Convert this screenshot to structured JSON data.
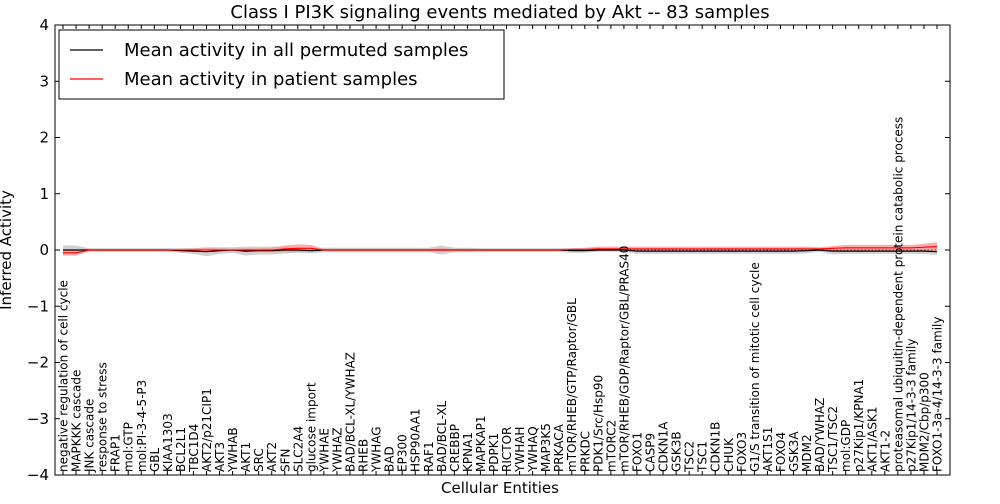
{
  "chart_data": {
    "type": "line",
    "title": "Class I PI3K signaling events mediated by Akt -- 83 samples",
    "xlabel": "Cellular Entities",
    "ylabel": "Inferred Activity",
    "ylim": [
      -4,
      4
    ],
    "yticks": [
      4,
      3,
      2,
      1,
      0,
      -1,
      -2,
      -3,
      -4
    ],
    "ytick_labels": [
      "4",
      "3",
      "2",
      "1",
      "0",
      "−1",
      "−2",
      "−3",
      "−4"
    ],
    "grid": false,
    "legend_position": "top-left",
    "colors": {
      "permuted": "#000000",
      "patient": "#ff0000",
      "patient_band": "#ff9090",
      "permuted_band": "#c8c8c8"
    },
    "categories": [
      "negative regulation of cell cycle",
      "MAPKKK cascade",
      "JNK cascade",
      "response to stress",
      "FRAP1",
      "mol:GTP",
      "mol:PI-3-4-5-P3",
      "GBL",
      "KIAA1303",
      "BCL2L1",
      "TBC1D4",
      "AKT2/p21CIP1",
      "AKT3",
      "YWHAB",
      "AKT1",
      "SRC",
      "AKT2",
      "SFN",
      "SLC2A4",
      "glucose import",
      "YWHAE",
      "YWHAZ",
      "BAD/BCL-XL/YWHAZ",
      "RHEB",
      "YWHAG",
      "BAD",
      "EP300",
      "HSP90AA1",
      "RAF1",
      "BAD/BCL-XL",
      "CREBBP",
      "KPNA1",
      "MAPKAP1",
      "PDPK1",
      "RICTOR",
      "YWHAH",
      "YWHAQ",
      "MAP3K5",
      "PRKACA",
      "mTOR/RHEB/GTP/Raptor/GBL",
      "PRKDC",
      "PDK1/Src/Hsp90",
      "mTORC2",
      "mTOR/RHEB/GDP/Raptor/GBL/PRAS40",
      "FOXO1",
      "CASP9",
      "CDKN1A",
      "GSK3B",
      "TSC2",
      "TSC1",
      "CDKN1B",
      "CHUK",
      "FOXO3",
      "G1/S transition of mitotic cell cycle",
      "AKT1S1",
      "FOXO4",
      "GSK3A",
      "MDM2",
      "BAD/YWHAZ",
      "TSC1/TSC2",
      "mol:GDP",
      "p27Kip1/KPNA1",
      "AKT1/ASK1",
      "AKT1-2",
      "proteasomal ubiquitin-dependent protein catabolic process",
      "p27Kip1/14-3-3 family",
      "MDM2/Cbp/p300",
      "FOXO1-3a-4/14-3-3 family"
    ],
    "series": [
      {
        "name": "Mean activity in all permuted samples",
        "color": "#000000",
        "values": [
          0,
          0,
          0,
          0,
          0,
          0,
          0,
          0,
          0,
          -0.01,
          -0.02,
          -0.03,
          -0.01,
          0,
          -0.02,
          -0.01,
          -0.01,
          0,
          0,
          -0.01,
          0,
          0,
          0,
          0,
          0,
          0,
          0,
          0,
          0,
          0,
          0,
          0,
          0,
          0,
          0,
          0,
          0,
          0,
          0,
          -0.01,
          -0.01,
          0,
          0,
          0,
          -0.02,
          -0.02,
          -0.02,
          -0.02,
          -0.02,
          -0.02,
          -0.02,
          -0.02,
          -0.02,
          -0.02,
          -0.02,
          -0.02,
          -0.02,
          -0.01,
          0,
          -0.02,
          -0.02,
          -0.02,
          -0.02,
          -0.02,
          -0.02,
          -0.02,
          -0.02,
          -0.03
        ],
        "band": [
          0.08,
          0.08,
          0.03,
          0.03,
          0.03,
          0.03,
          0.03,
          0.03,
          0.03,
          0.04,
          0.05,
          0.08,
          0.06,
          0.05,
          0.08,
          0.07,
          0.07,
          0.06,
          0.05,
          0.05,
          0.04,
          0.04,
          0.04,
          0.04,
          0.04,
          0.04,
          0.04,
          0.04,
          0.04,
          0.08,
          0.04,
          0.04,
          0.03,
          0.03,
          0.03,
          0.03,
          0.03,
          0.03,
          0.03,
          0.04,
          0.04,
          0.03,
          0.03,
          0.03,
          0.05,
          0.05,
          0.05,
          0.05,
          0.05,
          0.05,
          0.05,
          0.05,
          0.05,
          0.05,
          0.05,
          0.05,
          0.05,
          0.05,
          0.03,
          0.06,
          0.05,
          0.05,
          0.05,
          0.05,
          0.05,
          0.05,
          0.05,
          0.06
        ]
      },
      {
        "name": "Mean activity in patient samples",
        "color": "#ff0000",
        "values": [
          -0.05,
          -0.05,
          0,
          0,
          0,
          0,
          0,
          0,
          0,
          0,
          0,
          0,
          0,
          0,
          0,
          0,
          0,
          0.02,
          0.03,
          0.03,
          0,
          0,
          0,
          0,
          0,
          0,
          0,
          0,
          0,
          0,
          0,
          0,
          0,
          0,
          0,
          0,
          0,
          0,
          0,
          0.01,
          0.01,
          0.02,
          0.02,
          0.02,
          0.02,
          0.02,
          0.02,
          0.02,
          0.02,
          0.02,
          0.02,
          0.02,
          0.02,
          0.02,
          0.02,
          0.02,
          0.02,
          0.02,
          0.02,
          0.03,
          0.04,
          0.04,
          0.04,
          0.04,
          0.04,
          0.04,
          0.05,
          0.06
        ],
        "band": [
          0.05,
          0.05,
          0.02,
          0.02,
          0.02,
          0.02,
          0.02,
          0.02,
          0.02,
          0.02,
          0.03,
          0.04,
          0.03,
          0.02,
          0.03,
          0.03,
          0.04,
          0.06,
          0.07,
          0.06,
          0.02,
          0.02,
          0.02,
          0.02,
          0.02,
          0.02,
          0.02,
          0.02,
          0.02,
          0.03,
          0.02,
          0.02,
          0.02,
          0.02,
          0.02,
          0.02,
          0.02,
          0.02,
          0.02,
          0.02,
          0.03,
          0.04,
          0.04,
          0.04,
          0.04,
          0.04,
          0.04,
          0.04,
          0.04,
          0.04,
          0.04,
          0.04,
          0.04,
          0.04,
          0.04,
          0.04,
          0.04,
          0.04,
          0.03,
          0.04,
          0.05,
          0.05,
          0.05,
          0.05,
          0.05,
          0.05,
          0.06,
          0.08
        ]
      }
    ]
  }
}
